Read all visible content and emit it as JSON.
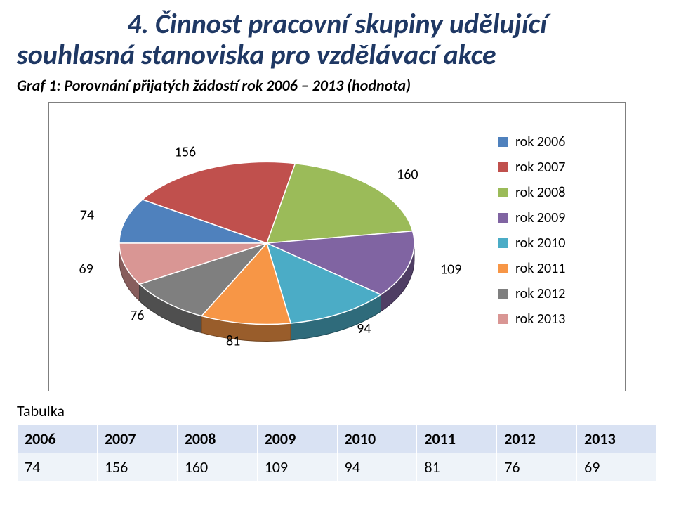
{
  "title": {
    "line1": "4. Činnost pracovní skupiny udělující",
    "line2": "souhlasná stanoviska pro vzdělávací akce"
  },
  "subtitle": "Graf 1: Porovnání přijatých žádostí rok 2006 – 2013 (hodnota)",
  "chart": {
    "type": "pie-3d",
    "background_color": "#ffffff",
    "border_color": "#7f7f7f",
    "label_fontsize": 20,
    "legend_fontsize": 20,
    "legend_position": "right",
    "depth": 24,
    "tilt": 0.55,
    "slices": [
      {
        "label": "74",
        "legend": "rok 2006",
        "value": 74,
        "color": "#4f81bd"
      },
      {
        "label": "156",
        "legend": "rok 2007",
        "value": 156,
        "color": "#c0504d"
      },
      {
        "label": "160",
        "legend": "rok 2008",
        "value": 160,
        "color": "#9bbb59"
      },
      {
        "label": "109",
        "legend": "rok 2009",
        "value": 109,
        "color": "#8064a2"
      },
      {
        "label": "94",
        "legend": "rok 2010",
        "value": 94,
        "color": "#4bacc6"
      },
      {
        "label": "81",
        "legend": "rok 2011",
        "value": 81,
        "color": "#f79646"
      },
      {
        "label": "76",
        "legend": "rok 2012",
        "value": 76,
        "color": "#7f7f7f"
      },
      {
        "label": "69",
        "legend": "rok 2013",
        "value": 69,
        "color": "#d99694"
      }
    ],
    "legend_marker_size": 14
  },
  "table": {
    "caption": "Tabulka",
    "header_bg": "#d9e2f3",
    "cell_bg": "#eef3f9",
    "columns": [
      "2006",
      "2007",
      "2008",
      "2009",
      "2010",
      "2011",
      "2012",
      "2013"
    ],
    "rows": [
      [
        "74",
        "156",
        "160",
        "109",
        "94",
        "81",
        "76",
        "69"
      ]
    ]
  }
}
